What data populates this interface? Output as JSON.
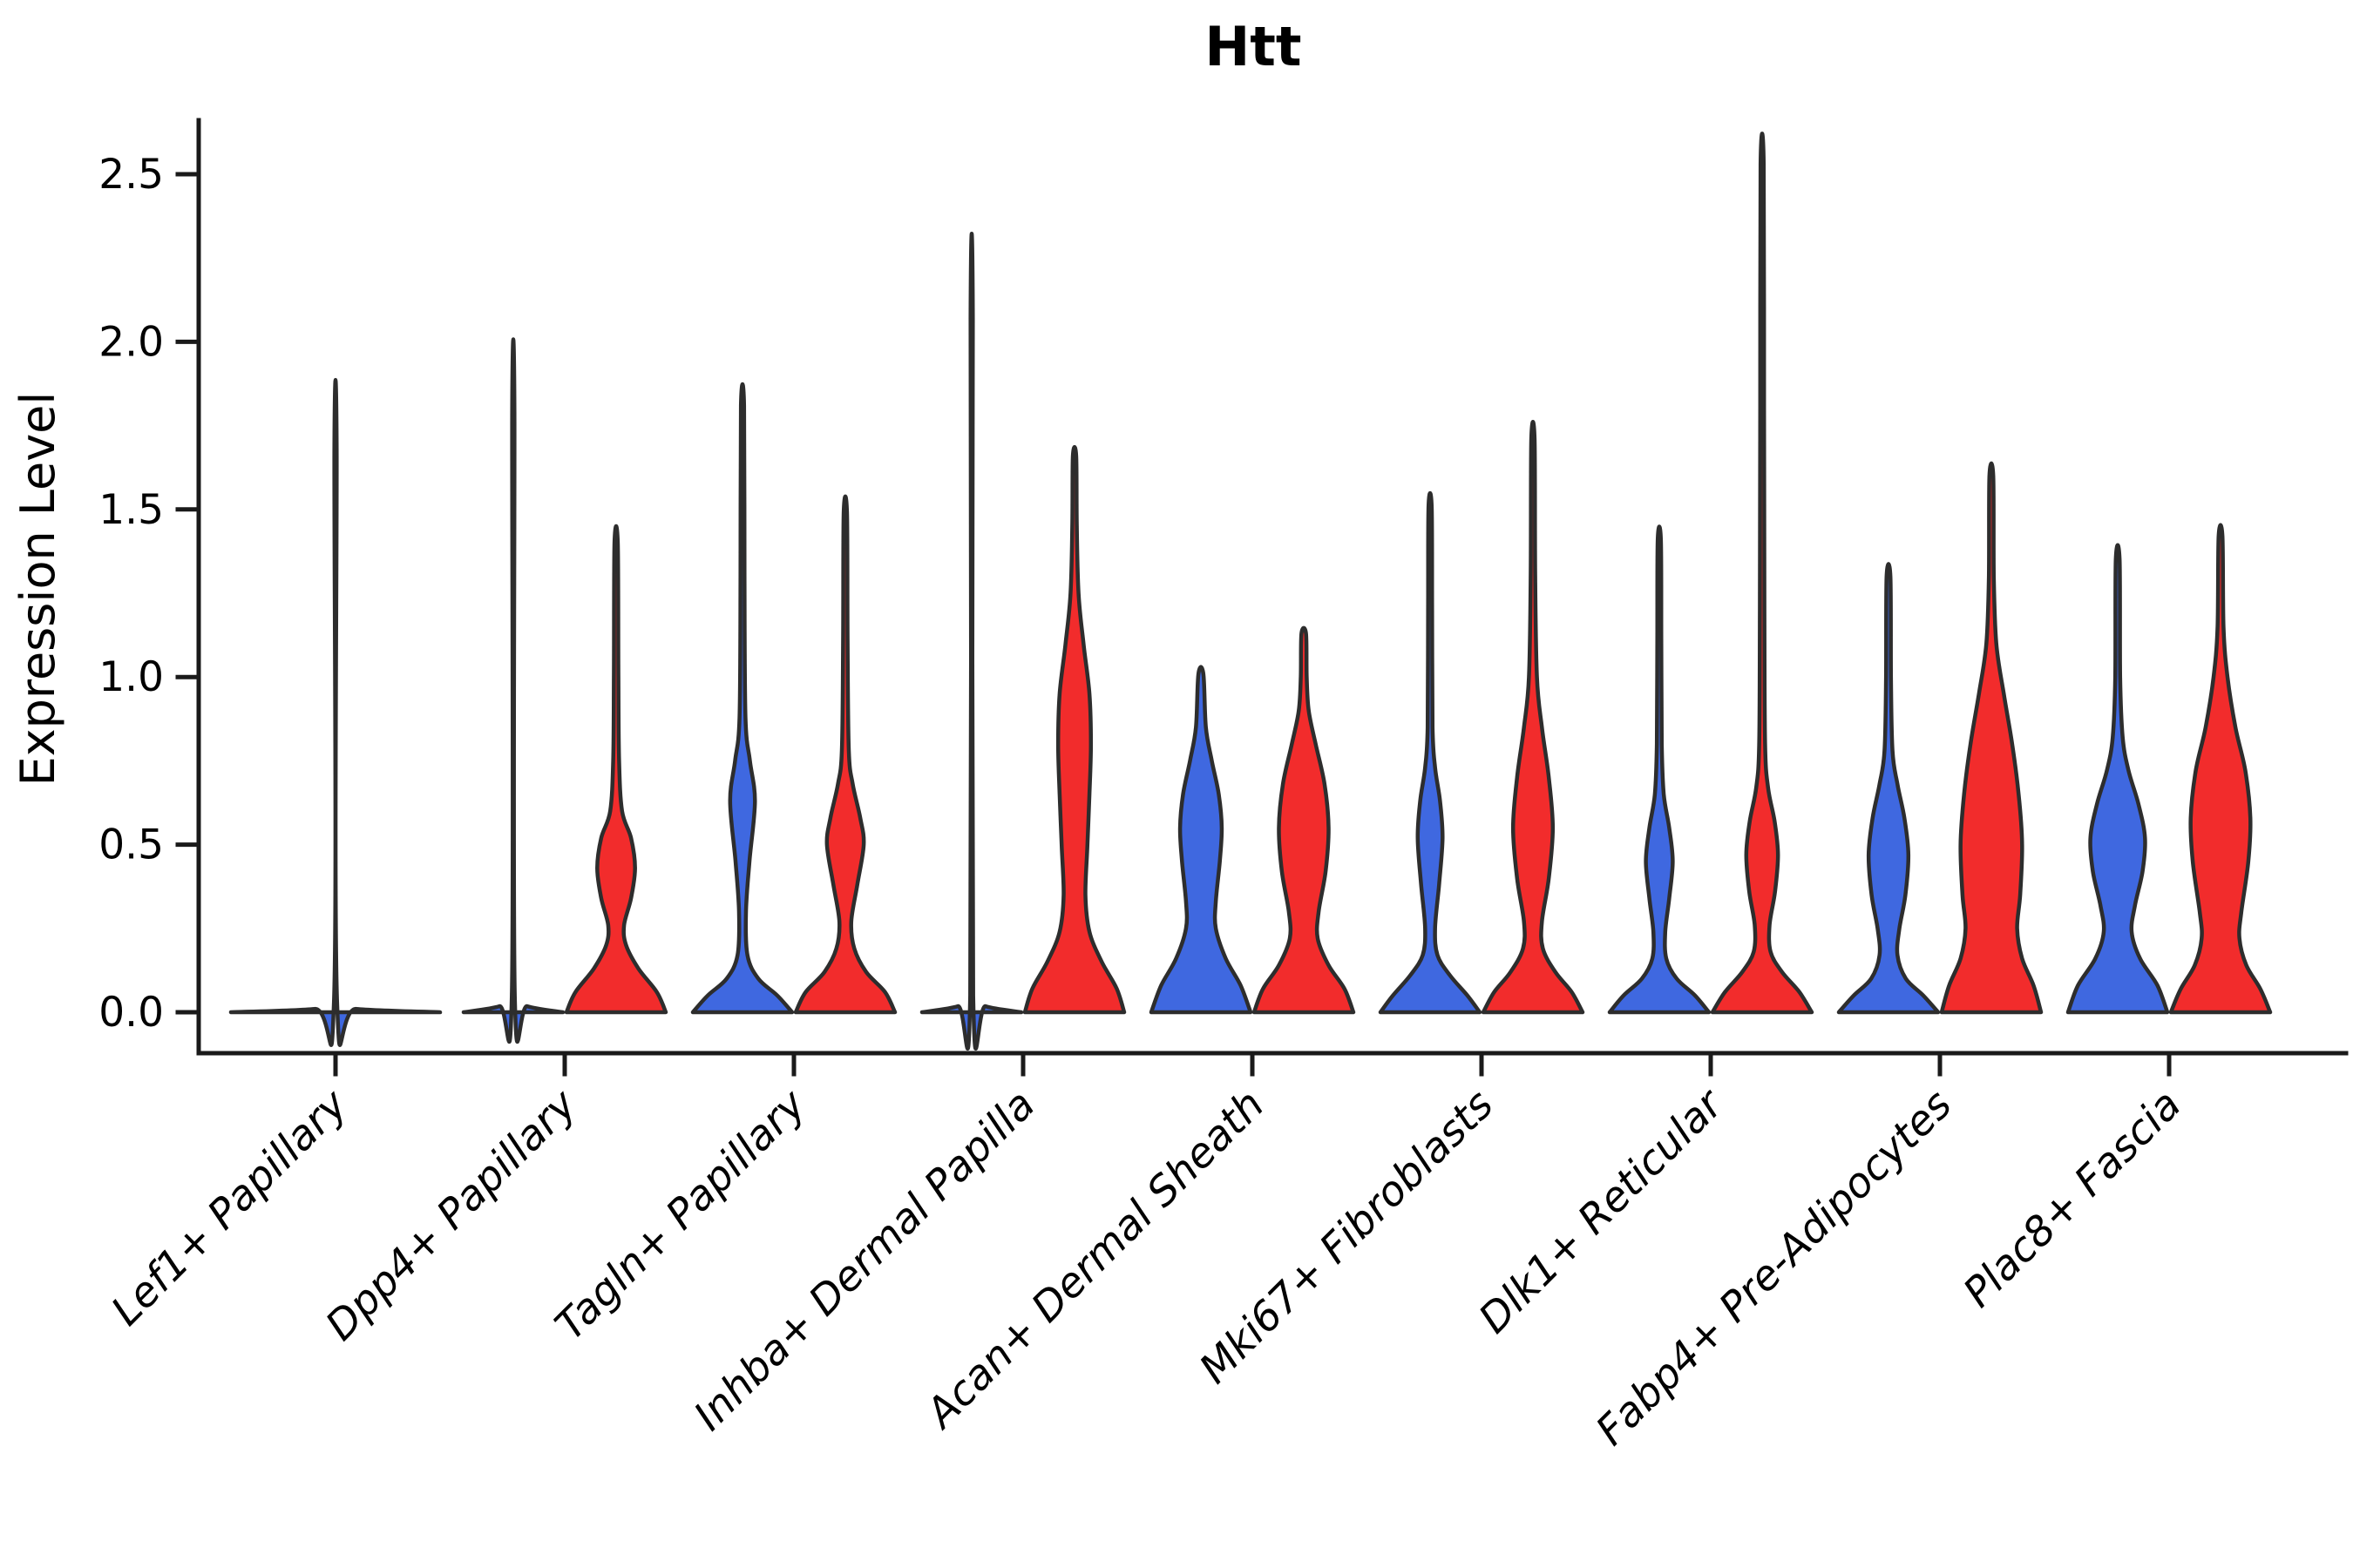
{
  "title": "Htt",
  "ylabel": "Expression Level",
  "colors": {
    "blue": "#3f68e0",
    "red": "#f22c2c",
    "outline": "#2d2d2d",
    "axis": "#1a1a1a",
    "background": "#ffffff"
  },
  "chart_data": {
    "type": "violin",
    "title": "Htt",
    "xlabel": "",
    "ylabel": "Expression Level",
    "ylim": [
      0,
      2.65
    ],
    "yticks": [
      {
        "value": 0.0,
        "label": "0.0"
      },
      {
        "value": 0.5,
        "label": "0.5"
      },
      {
        "value": 1.0,
        "label": "1.0"
      },
      {
        "value": 1.5,
        "label": "1.5"
      },
      {
        "value": 2.0,
        "label": "2.0"
      },
      {
        "value": 2.5,
        "label": "2.5"
      }
    ],
    "grid": false,
    "legend": "none",
    "categories": [
      "Lef1+ Papillary",
      "Dpp4+ Papillary",
      "Tagln+ Papillary",
      "Inhba+ Dermal Papilla",
      "Acan+ Dermal Sheath",
      "Mki67+ Fibroblasts",
      "Dlk1+ Reticular",
      "Fabp4+ Pre-Adipocytes",
      "Plac8+ Fascia"
    ],
    "violins": [
      {
        "category": "Lef1+ Papillary",
        "group": "single",
        "color": "blue",
        "max": 1.68,
        "width": "double",
        "profile": [
          [
            0,
            1.0
          ],
          [
            0.01,
            0.2
          ],
          [
            0.03,
            0.015
          ],
          [
            1.68,
            0.011
          ]
        ]
      },
      {
        "category": "Dpp4+ Papillary",
        "group": "blue",
        "color": "blue",
        "max": 1.79,
        "width": "normal",
        "profile": [
          [
            0,
            1.0
          ],
          [
            0.018,
            0.28
          ],
          [
            0.05,
            0.03
          ],
          [
            1.79,
            0.022
          ]
        ]
      },
      {
        "category": "Dpp4+ Papillary",
        "group": "red",
        "color": "red",
        "max": 1.4,
        "width": "normal",
        "profile": [
          [
            0,
            1.0
          ],
          [
            0.06,
            0.82
          ],
          [
            0.13,
            0.45
          ],
          [
            0.2,
            0.2
          ],
          [
            0.26,
            0.16
          ],
          [
            0.34,
            0.3
          ],
          [
            0.43,
            0.38
          ],
          [
            0.52,
            0.3
          ],
          [
            0.6,
            0.12
          ],
          [
            0.75,
            0.06
          ],
          [
            1.0,
            0.045
          ],
          [
            1.4,
            0.033
          ]
        ]
      },
      {
        "category": "Tagln+ Papillary",
        "group": "blue",
        "color": "blue",
        "max": 1.81,
        "width": "normal",
        "profile": [
          [
            0,
            1.0
          ],
          [
            0.05,
            0.7
          ],
          [
            0.1,
            0.32
          ],
          [
            0.17,
            0.1
          ],
          [
            0.3,
            0.07
          ],
          [
            0.45,
            0.14
          ],
          [
            0.63,
            0.25
          ],
          [
            0.75,
            0.15
          ],
          [
            0.88,
            0.06
          ],
          [
            1.3,
            0.04
          ],
          [
            1.81,
            0.032
          ]
        ]
      },
      {
        "category": "Tagln+ Papillary",
        "group": "red",
        "color": "red",
        "max": 1.49,
        "width": "normal",
        "profile": [
          [
            0,
            1.0
          ],
          [
            0.06,
            0.8
          ],
          [
            0.12,
            0.42
          ],
          [
            0.19,
            0.18
          ],
          [
            0.27,
            0.12
          ],
          [
            0.38,
            0.24
          ],
          [
            0.5,
            0.37
          ],
          [
            0.58,
            0.3
          ],
          [
            0.68,
            0.15
          ],
          [
            0.78,
            0.07
          ],
          [
            1.1,
            0.045
          ],
          [
            1.49,
            0.033
          ]
        ]
      },
      {
        "category": "Inhba+ Dermal Papilla",
        "group": "blue",
        "color": "blue",
        "max": 2.07,
        "width": "normal",
        "profile": [
          [
            0,
            1.0
          ],
          [
            0.018,
            0.28
          ],
          [
            0.05,
            0.03
          ],
          [
            2.07,
            0.022
          ]
        ]
      },
      {
        "category": "Inhba+ Dermal Papilla",
        "group": "red",
        "color": "red",
        "max": 1.66,
        "width": "normal",
        "profile": [
          [
            0,
            1.0
          ],
          [
            0.07,
            0.85
          ],
          [
            0.15,
            0.55
          ],
          [
            0.24,
            0.3
          ],
          [
            0.35,
            0.22
          ],
          [
            0.5,
            0.26
          ],
          [
            0.65,
            0.3
          ],
          [
            0.8,
            0.33
          ],
          [
            0.95,
            0.3
          ],
          [
            1.1,
            0.18
          ],
          [
            1.25,
            0.08
          ],
          [
            1.45,
            0.045
          ],
          [
            1.66,
            0.033
          ]
        ]
      },
      {
        "category": "Acan+ Dermal Sheath",
        "group": "blue",
        "color": "blue",
        "max": 1.01,
        "width": "normal",
        "profile": [
          [
            0,
            1.0
          ],
          [
            0.08,
            0.8
          ],
          [
            0.16,
            0.5
          ],
          [
            0.25,
            0.3
          ],
          [
            0.33,
            0.3
          ],
          [
            0.45,
            0.38
          ],
          [
            0.55,
            0.42
          ],
          [
            0.65,
            0.36
          ],
          [
            0.75,
            0.22
          ],
          [
            0.85,
            0.1
          ],
          [
            1.01,
            0.05
          ]
        ]
      },
      {
        "category": "Acan+ Dermal Sheath",
        "group": "red",
        "color": "red",
        "max": 1.13,
        "width": "normal",
        "profile": [
          [
            0,
            1.0
          ],
          [
            0.07,
            0.82
          ],
          [
            0.14,
            0.5
          ],
          [
            0.22,
            0.28
          ],
          [
            0.3,
            0.3
          ],
          [
            0.42,
            0.44
          ],
          [
            0.55,
            0.5
          ],
          [
            0.68,
            0.42
          ],
          [
            0.8,
            0.24
          ],
          [
            0.9,
            0.1
          ],
          [
            1.0,
            0.06
          ],
          [
            1.13,
            0.045
          ]
        ]
      },
      {
        "category": "Mki67+ Fibroblasts",
        "group": "blue",
        "color": "blue",
        "max": 1.51,
        "width": "normal",
        "profile": [
          [
            0,
            1.0
          ],
          [
            0.05,
            0.75
          ],
          [
            0.11,
            0.4
          ],
          [
            0.17,
            0.15
          ],
          [
            0.25,
            0.1
          ],
          [
            0.38,
            0.18
          ],
          [
            0.52,
            0.25
          ],
          [
            0.63,
            0.2
          ],
          [
            0.73,
            0.1
          ],
          [
            0.85,
            0.05
          ],
          [
            1.2,
            0.04
          ],
          [
            1.51,
            0.032
          ]
        ]
      },
      {
        "category": "Mki67+ Fibroblasts",
        "group": "red",
        "color": "red",
        "max": 1.71,
        "width": "normal",
        "profile": [
          [
            0,
            1.0
          ],
          [
            0.06,
            0.78
          ],
          [
            0.12,
            0.45
          ],
          [
            0.19,
            0.2
          ],
          [
            0.27,
            0.18
          ],
          [
            0.4,
            0.32
          ],
          [
            0.55,
            0.4
          ],
          [
            0.7,
            0.32
          ],
          [
            0.85,
            0.18
          ],
          [
            1.0,
            0.08
          ],
          [
            1.3,
            0.045
          ],
          [
            1.71,
            0.033
          ]
        ]
      },
      {
        "category": "Dlk1+ Reticular",
        "group": "blue",
        "color": "blue",
        "max": 1.41,
        "width": "normal",
        "profile": [
          [
            0,
            1.0
          ],
          [
            0.05,
            0.72
          ],
          [
            0.1,
            0.35
          ],
          [
            0.16,
            0.14
          ],
          [
            0.24,
            0.12
          ],
          [
            0.34,
            0.2
          ],
          [
            0.45,
            0.27
          ],
          [
            0.55,
            0.2
          ],
          [
            0.65,
            0.09
          ],
          [
            0.8,
            0.05
          ],
          [
            1.1,
            0.04
          ],
          [
            1.41,
            0.032
          ]
        ]
      },
      {
        "category": "Dlk1+ Reticular",
        "group": "red",
        "color": "red",
        "max": 2.53,
        "width": "normal",
        "profile": [
          [
            0,
            1.0
          ],
          [
            0.06,
            0.75
          ],
          [
            0.12,
            0.4
          ],
          [
            0.18,
            0.17
          ],
          [
            0.26,
            0.15
          ],
          [
            0.36,
            0.26
          ],
          [
            0.47,
            0.32
          ],
          [
            0.57,
            0.25
          ],
          [
            0.67,
            0.12
          ],
          [
            0.8,
            0.06
          ],
          [
            1.2,
            0.045
          ],
          [
            1.8,
            0.038
          ],
          [
            2.53,
            0.032
          ]
        ]
      },
      {
        "category": "Fabp4+ Pre-Adipocytes",
        "group": "blue",
        "color": "blue",
        "max": 1.3,
        "width": "normal",
        "profile": [
          [
            0,
            1.0
          ],
          [
            0.05,
            0.7
          ],
          [
            0.1,
            0.35
          ],
          [
            0.17,
            0.18
          ],
          [
            0.25,
            0.22
          ],
          [
            0.35,
            0.34
          ],
          [
            0.47,
            0.4
          ],
          [
            0.58,
            0.32
          ],
          [
            0.68,
            0.18
          ],
          [
            0.78,
            0.08
          ],
          [
            1.0,
            0.05
          ],
          [
            1.3,
            0.038
          ]
        ]
      },
      {
        "category": "Fabp4+ Pre-Adipocytes",
        "group": "red",
        "color": "red",
        "max": 1.6,
        "width": "normal",
        "profile": [
          [
            0,
            1.0
          ],
          [
            0.08,
            0.85
          ],
          [
            0.16,
            0.62
          ],
          [
            0.25,
            0.52
          ],
          [
            0.35,
            0.58
          ],
          [
            0.5,
            0.62
          ],
          [
            0.65,
            0.55
          ],
          [
            0.8,
            0.42
          ],
          [
            0.95,
            0.25
          ],
          [
            1.1,
            0.1
          ],
          [
            1.3,
            0.05
          ],
          [
            1.6,
            0.038
          ]
        ]
      },
      {
        "category": "Plac8+ Fascia",
        "group": "blue",
        "color": "blue",
        "max": 1.35,
        "width": "normal",
        "profile": [
          [
            0,
            1.0
          ],
          [
            0.08,
            0.8
          ],
          [
            0.16,
            0.45
          ],
          [
            0.24,
            0.28
          ],
          [
            0.32,
            0.35
          ],
          [
            0.42,
            0.5
          ],
          [
            0.52,
            0.55
          ],
          [
            0.62,
            0.42
          ],
          [
            0.72,
            0.22
          ],
          [
            0.82,
            0.1
          ],
          [
            1.0,
            0.05
          ],
          [
            1.35,
            0.038
          ]
        ]
      },
      {
        "category": "Plac8+ Fascia",
        "group": "red",
        "color": "red",
        "max": 1.42,
        "width": "normal",
        "profile": [
          [
            0,
            1.0
          ],
          [
            0.07,
            0.8
          ],
          [
            0.14,
            0.52
          ],
          [
            0.22,
            0.38
          ],
          [
            0.3,
            0.42
          ],
          [
            0.45,
            0.56
          ],
          [
            0.58,
            0.6
          ],
          [
            0.72,
            0.5
          ],
          [
            0.85,
            0.3
          ],
          [
            1.0,
            0.14
          ],
          [
            1.15,
            0.06
          ],
          [
            1.42,
            0.038
          ]
        ]
      }
    ]
  }
}
